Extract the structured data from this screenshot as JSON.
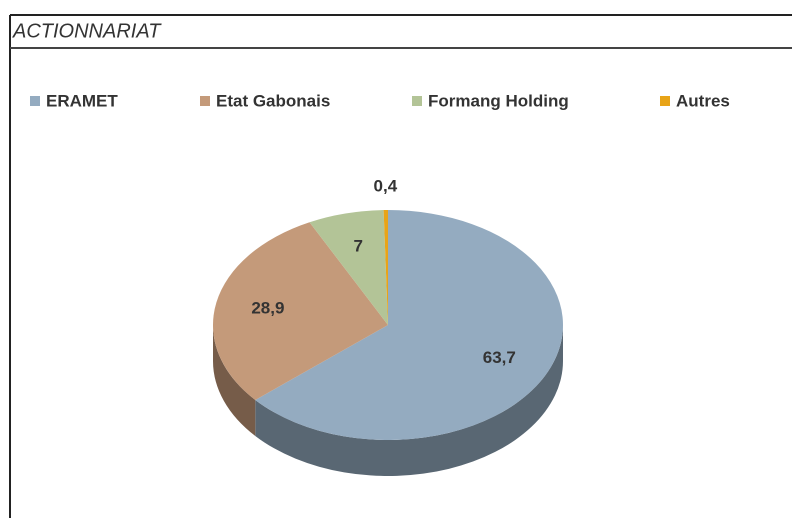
{
  "chart_data": {
    "type": "pie",
    "title": "ACTIONNARIAT",
    "categories": [
      "ERAMET",
      "Etat Gabonais",
      "Formang Holding",
      "Autres"
    ],
    "values": [
      63.7,
      28.9,
      7,
      0.4
    ],
    "value_labels": [
      "63,7",
      "28,9",
      "7",
      "0,4"
    ],
    "colors": [
      "#94abc0",
      "#c49a7a",
      "#b3c497",
      "#e8a418"
    ],
    "legend": "top"
  }
}
